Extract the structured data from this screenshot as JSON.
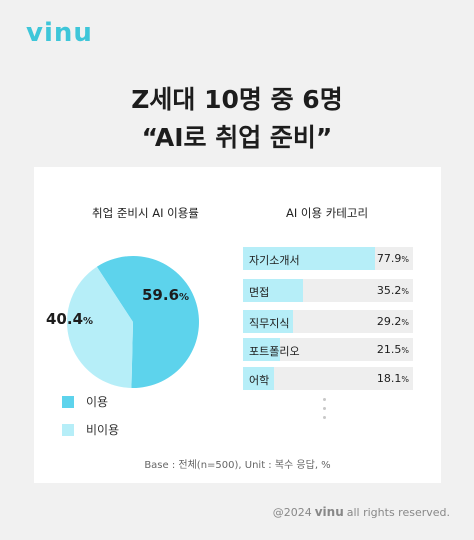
{
  "brand": {
    "logo_text": "vinu",
    "color": "#3ec6d9"
  },
  "headline": {
    "line1": "Z세대 10명 중 6명",
    "line2": "“AI로 취업 준비”"
  },
  "colors": {
    "use": "#5dd3ec",
    "non_use": "#b6eef8",
    "bar_fill": "#b6eef8",
    "bar_track": "#eeeeee"
  },
  "chart_data": [
    {
      "type": "pie",
      "title": "취업 준비시 AI 이용률",
      "unit": "%",
      "slices": [
        {
          "name": "이용",
          "value": 59.6,
          "value_text": "59.6",
          "color": "#5dd3ec"
        },
        {
          "name": "비이용",
          "value": 40.4,
          "value_text": "40.4",
          "color": "#b6eef8"
        }
      ],
      "legend": [
        "이용",
        "비이용"
      ],
      "legend_position": "bottom-left"
    },
    {
      "type": "bar",
      "orientation": "horizontal",
      "title": "AI 이용 카테고리",
      "unit": "%",
      "categories": [
        "자기소개서",
        "면접",
        "직무지식",
        "포트폴리오",
        "어학"
      ],
      "values": [
        77.9,
        35.2,
        29.2,
        21.5,
        18.1
      ],
      "value_texts": [
        "77.9",
        "35.2",
        "29.2",
        "21.5",
        "18.1"
      ],
      "xlim": [
        0,
        100
      ]
    }
  ],
  "note": "Base : 전체(n=500), Unit : 복수 응답, %",
  "footer": {
    "prefix": "@2024",
    "brand": "vinu",
    "suffix": "all rights reserved."
  }
}
